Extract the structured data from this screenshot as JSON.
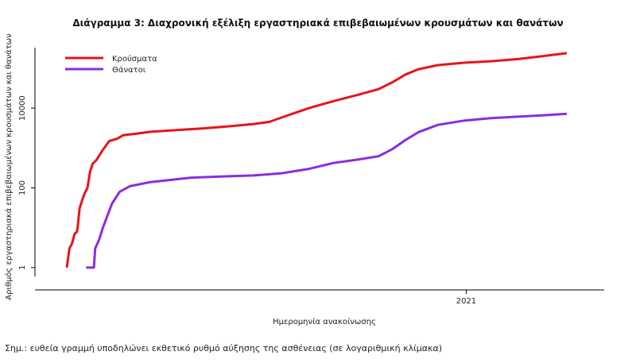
{
  "chart_data": {
    "type": "line",
    "title": "Διάγραμμα 3: Διαχρονική εξέλιξη εργαστηριακά επιβεβαιωμένων κρουσμάτων και θανάτων",
    "xlabel": "Ημερομηνία ανακοίνωσης",
    "ylabel": "Αριθμός εργαστηριακά επιβεβαιωμένων κρουσμάτων και θανάτων",
    "y_scale": "log",
    "ylim": [
      0.6,
      300000
    ],
    "xlim": [
      "2020-02-05",
      "2021-04-15"
    ],
    "yticks": [
      1,
      100,
      10000
    ],
    "ytick_labels": [
      "1",
      "100",
      "10000"
    ],
    "xticks": [
      "2021-01-01"
    ],
    "xtick_labels": [
      "2021"
    ],
    "legend_position": "top-left",
    "grid": false,
    "series": [
      {
        "name": "Κρούσματα",
        "color": "#e8141b",
        "points": [
          [
            "2020-02-26",
            1
          ],
          [
            "2020-02-28",
            3
          ],
          [
            "2020-03-01",
            4
          ],
          [
            "2020-03-03",
            7
          ],
          [
            "2020-03-05",
            8
          ],
          [
            "2020-03-07",
            31
          ],
          [
            "2020-03-09",
            50
          ],
          [
            "2020-03-11",
            75
          ],
          [
            "2020-03-13",
            100
          ],
          [
            "2020-03-15",
            250
          ],
          [
            "2020-03-17",
            400
          ],
          [
            "2020-03-20",
            500
          ],
          [
            "2020-03-25",
            900
          ],
          [
            "2020-03-30",
            1500
          ],
          [
            "2020-04-05",
            1700
          ],
          [
            "2020-04-10",
            2100
          ],
          [
            "2020-04-20",
            2300
          ],
          [
            "2020-05-01",
            2550
          ],
          [
            "2020-05-20",
            2800
          ],
          [
            "2020-06-10",
            3100
          ],
          [
            "2020-07-01",
            3500
          ],
          [
            "2020-07-20",
            4000
          ],
          [
            "2020-08-01",
            4500
          ],
          [
            "2020-08-15",
            6500
          ],
          [
            "2020-09-01",
            10000
          ],
          [
            "2020-09-20",
            15000
          ],
          [
            "2020-10-10",
            22000
          ],
          [
            "2020-10-25",
            30000
          ],
          [
            "2020-11-05",
            45000
          ],
          [
            "2020-11-15",
            70000
          ],
          [
            "2020-11-25",
            95000
          ],
          [
            "2020-12-10",
            120000
          ],
          [
            "2020-12-31",
            138000
          ],
          [
            "2021-01-20",
            150000
          ],
          [
            "2021-02-10",
            170000
          ],
          [
            "2021-03-01",
            200000
          ],
          [
            "2021-03-20",
            240000
          ]
        ]
      },
      {
        "name": "Θάνατοι",
        "color": "#8b2be2",
        "points": [
          [
            "2020-03-12",
            1
          ],
          [
            "2020-03-18",
            1
          ],
          [
            "2020-03-19",
            3
          ],
          [
            "2020-03-22",
            5
          ],
          [
            "2020-03-25",
            10
          ],
          [
            "2020-04-01",
            40
          ],
          [
            "2020-04-07",
            80
          ],
          [
            "2020-04-15",
            110
          ],
          [
            "2020-05-01",
            140
          ],
          [
            "2020-06-01",
            180
          ],
          [
            "2020-07-01",
            195
          ],
          [
            "2020-07-20",
            205
          ],
          [
            "2020-08-10",
            230
          ],
          [
            "2020-09-01",
            300
          ],
          [
            "2020-09-20",
            420
          ],
          [
            "2020-10-10",
            520
          ],
          [
            "2020-10-25",
            620
          ],
          [
            "2020-11-05",
            950
          ],
          [
            "2020-11-15",
            1600
          ],
          [
            "2020-11-25",
            2500
          ],
          [
            "2020-12-10",
            3800
          ],
          [
            "2020-12-31",
            4900
          ],
          [
            "2021-01-20",
            5600
          ],
          [
            "2021-02-10",
            6100
          ],
          [
            "2021-03-01",
            6600
          ],
          [
            "2021-03-20",
            7200
          ]
        ]
      }
    ]
  },
  "note": "Σημ.: ευθεία γραμμή υποδηλώνει εκθετικό ρυθμό αύξησης της ασθένειας (σε λογαριθμική κλίμακα)"
}
